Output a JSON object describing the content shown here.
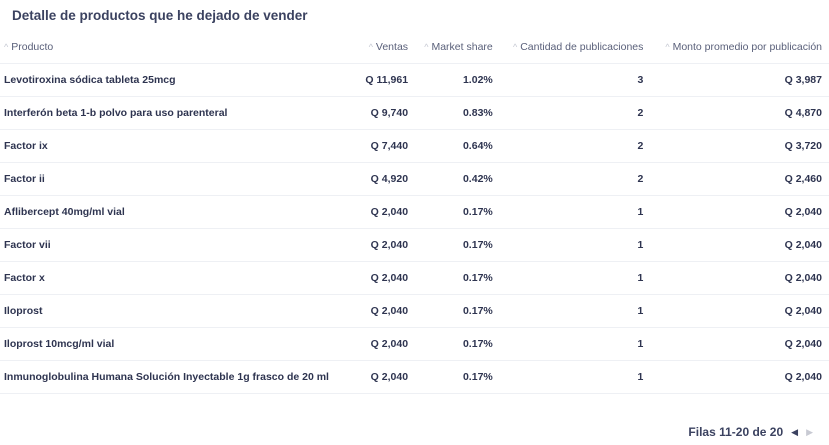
{
  "title": "Detalle de productos que he dejado de vender",
  "columns": [
    "Producto",
    "Ventas",
    "Market share",
    "Cantidad de publicaciones",
    "Monto promedio por publicación"
  ],
  "rows": [
    [
      "Levotiroxina sódica tableta 25mcg",
      "Q 11,961",
      "1.02%",
      "3",
      "Q 3,987"
    ],
    [
      "Interferón beta 1-b polvo para uso parenteral",
      "Q 9,740",
      "0.83%",
      "2",
      "Q 4,870"
    ],
    [
      "Factor ix",
      "Q 7,440",
      "0.64%",
      "2",
      "Q 3,720"
    ],
    [
      "Factor ii",
      "Q 4,920",
      "0.42%",
      "2",
      "Q 2,460"
    ],
    [
      "Aflibercept 40mg/ml vial",
      "Q 2,040",
      "0.17%",
      "1",
      "Q 2,040"
    ],
    [
      "Factor vii",
      "Q 2,040",
      "0.17%",
      "1",
      "Q 2,040"
    ],
    [
      "Factor x",
      "Q 2,040",
      "0.17%",
      "1",
      "Q 2,040"
    ],
    [
      "Iloprost",
      "Q 2,040",
      "0.17%",
      "1",
      "Q 2,040"
    ],
    [
      "Iloprost 10mcg/ml vial",
      "Q 2,040",
      "0.17%",
      "1",
      "Q 2,040"
    ],
    [
      "Inmunoglobulina Humana Solución Inyectable 1g frasco de 20 ml",
      "Q 2,040",
      "0.17%",
      "1",
      "Q 2,040"
    ]
  ],
  "pagination": {
    "label": "Filas 11-20 de 20",
    "prev_icon": "caret-left-icon",
    "next_icon": "caret-right-icon",
    "next_disabled": true
  }
}
